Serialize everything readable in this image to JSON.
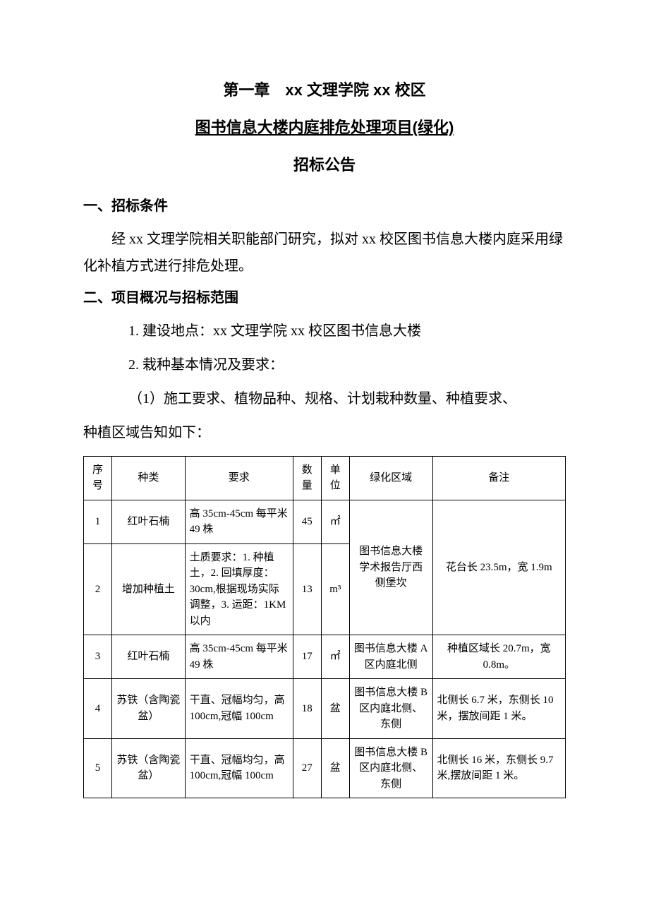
{
  "chapter_title": "第一章 xx 文理学院 xx 校区",
  "doc_title": "图书信息大楼内庭排危处理项目(绿化)",
  "subtitle": "招标公告",
  "section1": {
    "heading": "一、招标条件",
    "para": "经 xx 文理学院相关职能部门研究，拟对 xx 校区图书信息大楼内庭采用绿化补植方式进行排危处理。"
  },
  "section2": {
    "heading": "二、项目概况与招标范围",
    "item1": "1. 建设地点：xx 文理学院 xx 校区图书信息大楼",
    "item2": "2. 栽种基本情况及要求：",
    "spec_line1": "（1）施工要求、植物品种、规格、计划栽种数量、种植要求、",
    "spec_line2": "种植区域告知如下："
  },
  "table": {
    "headers": {
      "seq": "序号",
      "type": "种类",
      "req": "要求",
      "qty": "数量",
      "unit": "单位",
      "area": "绿化区域",
      "note": "备注"
    },
    "rows": [
      {
        "seq": "1",
        "type": "红叶石楠",
        "req": "高 35cm-45cm 每平米 49 株",
        "qty": "45",
        "unit": "㎡"
      },
      {
        "seq": "2",
        "type": "增加种植土",
        "req": "土质要求：1. 种植土，2. 回填厚度：30cm,根据现场实际调整，3. 运距：1KM 以内",
        "qty": "13",
        "unit": "m³"
      },
      {
        "seq": "3",
        "type": "红叶石楠",
        "req": "高 35cm-45cm 每平米 49 株",
        "qty": "17",
        "unit": "㎡",
        "area": "图书信息大楼 A 区内庭北侧",
        "note": "种植区域长 20.7m，宽 0.8m。"
      },
      {
        "seq": "4",
        "type": "苏铁（含陶瓷盆）",
        "req": "干直、冠幅均匀，高 100cm,冠幅 100cm",
        "qty": "18",
        "unit": "盆",
        "area": "图书信息大楼 B 区内庭北侧、东侧",
        "note": "北侧长 6.7 米，东侧长 10 米，摆放间距 1 米。"
      },
      {
        "seq": "5",
        "type": "苏铁（含陶瓷盆）",
        "req": "干直、冠幅均匀，高 100cm,冠幅 100cm",
        "qty": "27",
        "unit": "盆",
        "area": "图书信息大楼 B 区内庭北侧、东侧",
        "note": "北侧长 16 米，东侧长 9.7 米,摆放间距 1 米。"
      }
    ],
    "merged_area_12": "图书信息大楼学术报告厅西侧堡坎",
    "merged_note_12": "花台长 23.5m，宽 1.9m"
  }
}
